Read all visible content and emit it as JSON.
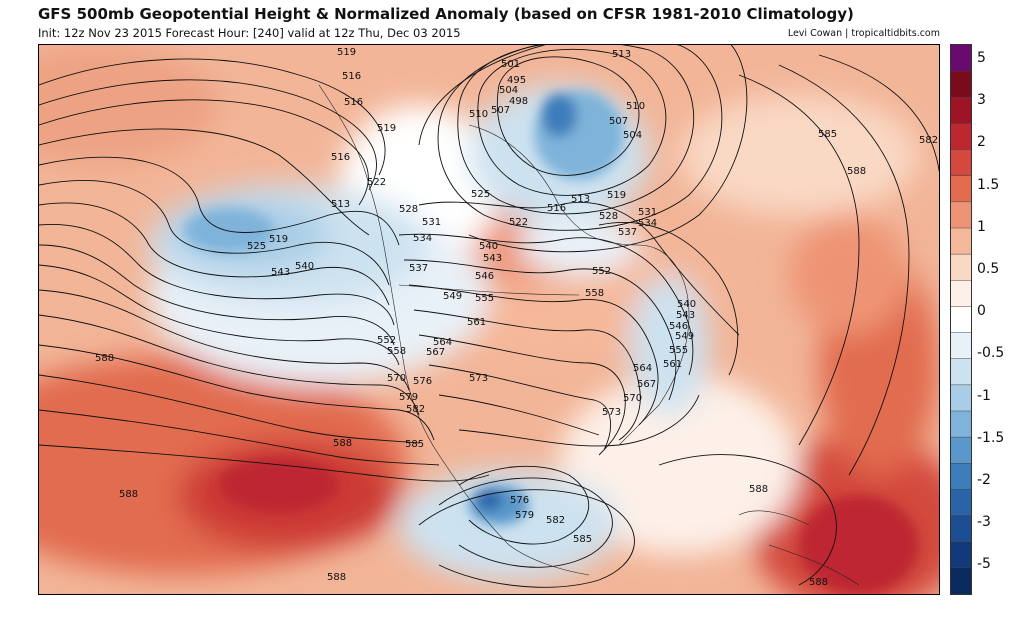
{
  "header": {
    "title": "GFS 500mb Geopotential Height & Normalized Anomaly (based on CFSR 1981-2010 Climatology)",
    "subtitle": "Init: 12z Nov 23 2015   Forecast Hour: [240]   valid at 12z Thu, Dec 03 2015",
    "credit": "Levi Cowan | tropicaltidbits.com"
  },
  "colorbar": {
    "colors": [
      "#6a0a6e",
      "#7a0b1c",
      "#9e1425",
      "#bd2730",
      "#d3493d",
      "#e26c50",
      "#ee9475",
      "#f5b89a",
      "#f9d8c4",
      "#fdf0e8",
      "#ffffff",
      "#e9f1f8",
      "#cde2f0",
      "#a9cde6",
      "#7fb3da",
      "#5a98cb",
      "#3e7dbb",
      "#2b63a8",
      "#1d4d93",
      "#123a7a",
      "#0b2a5e"
    ],
    "ticks": [
      "5",
      "3",
      "2",
      "1.5",
      "1",
      "0.5",
      "0",
      "-0.5",
      "-1",
      "-1.5",
      "-2",
      "-3",
      "-5"
    ]
  },
  "contour_labels": [
    "519",
    "516",
    "516",
    "519",
    "516",
    "522",
    "513",
    "525",
    "519",
    "543",
    "540",
    "528",
    "531",
    "534",
    "537",
    "549",
    "552",
    "558",
    "570",
    "579",
    "582",
    "576",
    "567",
    "564",
    "501",
    "495",
    "498",
    "504",
    "507",
    "510",
    "513",
    "510",
    "507",
    "504",
    "513",
    "516",
    "522",
    "525",
    "519",
    "528",
    "531",
    "534",
    "537",
    "540",
    "543",
    "546",
    "552",
    "555",
    "561",
    "558",
    "573",
    "540",
    "543",
    "546",
    "549",
    "555",
    "561",
    "564",
    "567",
    "570",
    "573",
    "585",
    "582",
    "588",
    "588",
    "588",
    "588",
    "588",
    "585",
    "576",
    "579",
    "582",
    "585",
    "588",
    "588"
  ]
}
